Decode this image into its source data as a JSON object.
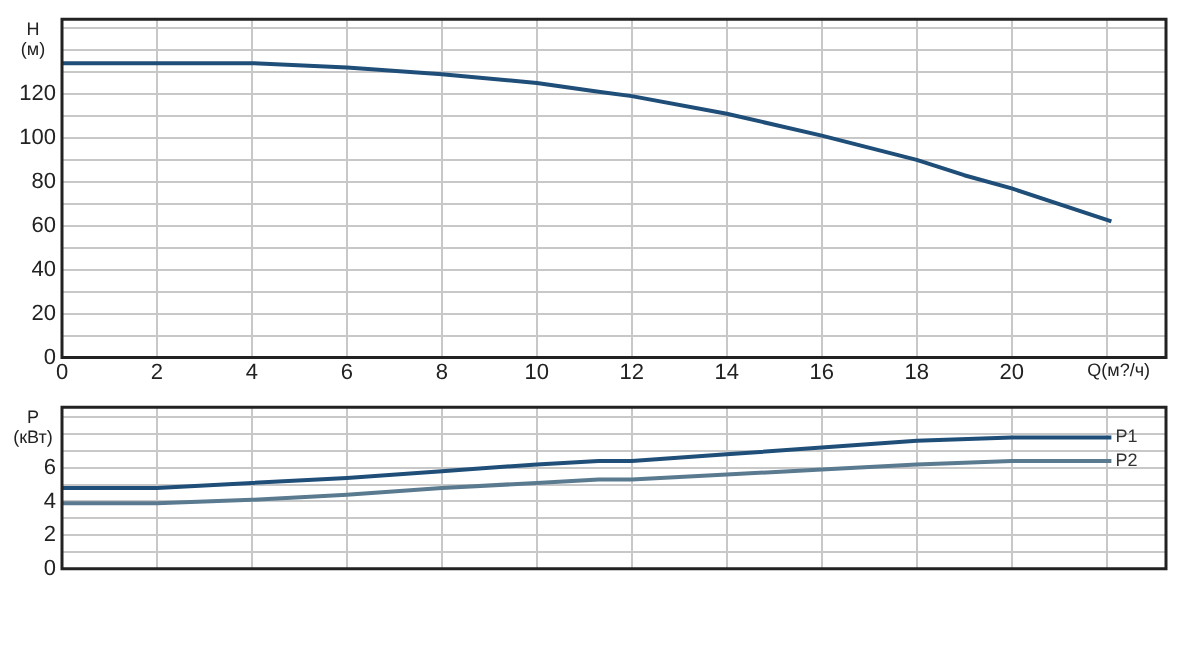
{
  "chart_data": [
    {
      "type": "line",
      "xlabel": "Q(м?/ч)",
      "ylabel": "H (м)",
      "marker": "none",
      "grid": true,
      "x": [
        0,
        2,
        4,
        6,
        8,
        10,
        11.3,
        12,
        14,
        16,
        18,
        19,
        20,
        22.1
      ],
      "xlim": [
        0,
        23.25
      ],
      "xticks": [
        0,
        2,
        4,
        6,
        8,
        10,
        12,
        14,
        16,
        18,
        20,
        {
          "value": 22,
          "label": null
        }
      ],
      "ylim": [
        0,
        154
      ],
      "yticks": [
        0,
        {
          "value": 10,
          "label": null
        },
        20,
        {
          "value": 30,
          "label": null
        },
        40,
        {
          "value": 50,
          "label": null
        },
        60,
        {
          "value": 70,
          "label": null
        },
        80,
        {
          "value": 90,
          "label": null
        },
        100,
        {
          "value": 110,
          "label": null
        },
        120,
        {
          "value": 130,
          "label": null
        },
        {
          "value": 140,
          "label": null
        },
        {
          "value": 150,
          "label": null
        }
      ],
      "series": [
        {
          "color": "#1f4e79",
          "values": [
            134,
            134,
            134,
            132,
            129,
            125,
            121,
            119,
            111,
            101,
            90,
            83,
            77,
            62
          ]
        }
      ]
    },
    {
      "type": "line",
      "ylabel": "P (кВт)",
      "marker": "none",
      "grid": true,
      "tick_labels": "y",
      "x": [
        0,
        2,
        4,
        6,
        8,
        10,
        11.3,
        12,
        14,
        16,
        18,
        20,
        22.1
      ],
      "xlim": [
        0,
        23.25
      ],
      "xticks": [
        {
          "value": 0,
          "label": null
        },
        {
          "value": 2,
          "label": null
        },
        {
          "value": 4,
          "label": null
        },
        {
          "value": 6,
          "label": null
        },
        {
          "value": 8,
          "label": null
        },
        {
          "value": 10,
          "label": null
        },
        {
          "value": 12,
          "label": null
        },
        {
          "value": 14,
          "label": null
        },
        {
          "value": 16,
          "label": null
        },
        {
          "value": 18,
          "label": null
        },
        {
          "value": 20,
          "label": null
        },
        {
          "value": 22,
          "label": null
        }
      ],
      "ylim": [
        0,
        9.6
      ],
      "yticks": [
        0,
        {
          "value": 1,
          "label": null
        },
        2,
        {
          "value": 3,
          "label": null
        },
        4,
        {
          "value": 5,
          "label": null
        },
        6,
        {
          "value": 7,
          "label": null
        },
        {
          "value": 8,
          "label": null
        },
        {
          "value": 9,
          "label": null
        }
      ],
      "series": [
        {
          "name": "P1",
          "color": "#1f4e79",
          "values": [
            4.8,
            4.8,
            5.1,
            5.4,
            5.8,
            6.2,
            6.4,
            6.4,
            6.8,
            7.2,
            7.6,
            7.8,
            7.8
          ]
        },
        {
          "name": "P2",
          "color": "#5a7a90",
          "values": [
            3.9,
            3.9,
            4.1,
            4.4,
            4.8,
            5.1,
            5.3,
            5.3,
            5.6,
            5.9,
            6.2,
            6.4,
            6.4
          ]
        }
      ]
    }
  ]
}
